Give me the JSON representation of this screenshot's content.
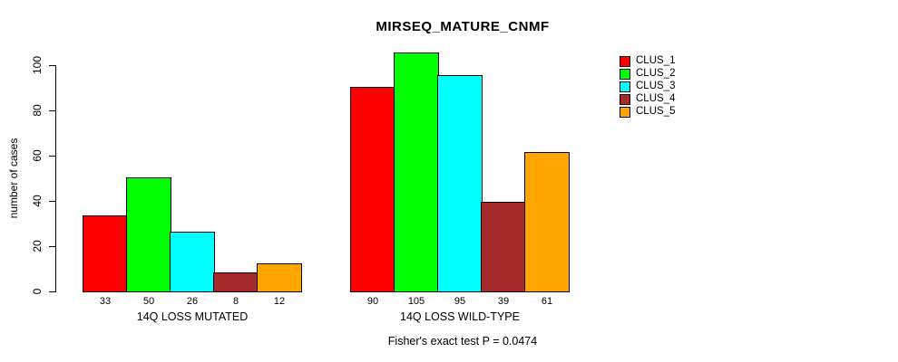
{
  "title": "MIRSEQ_MATURE_CNMF",
  "footer": "Fisher's exact test P = 0.0474",
  "y_axis": {
    "label": "number of cases"
  },
  "chart_data": {
    "type": "bar",
    "title": "MIRSEQ_MATURE_CNMF",
    "xlabel": "",
    "ylabel": "number of cases",
    "ylim": [
      0,
      105
    ],
    "yticks": [
      0,
      20,
      40,
      60,
      80,
      100
    ],
    "grid": false,
    "bar_border_color": "#000000",
    "background_color": "#ffffff",
    "legend_position": "top-right-outside-bars",
    "value_labels_shown": true,
    "annotation": "Fisher's exact test P = 0.0474",
    "categories": [
      "14Q LOSS MUTATED",
      "14Q LOSS WILD-TYPE"
    ],
    "series": [
      {
        "name": "CLUS_1",
        "color": "#ff0000",
        "values": [
          33,
          90
        ]
      },
      {
        "name": "CLUS_2",
        "color": "#00ff00",
        "values": [
          50,
          105
        ]
      },
      {
        "name": "CLUS_3",
        "color": "#00ffff",
        "values": [
          26,
          95
        ]
      },
      {
        "name": "CLUS_4",
        "color": "#a52a2a",
        "values": [
          8,
          39
        ]
      },
      {
        "name": "CLUS_5",
        "color": "#ffa500",
        "values": [
          12,
          61
        ]
      }
    ]
  }
}
